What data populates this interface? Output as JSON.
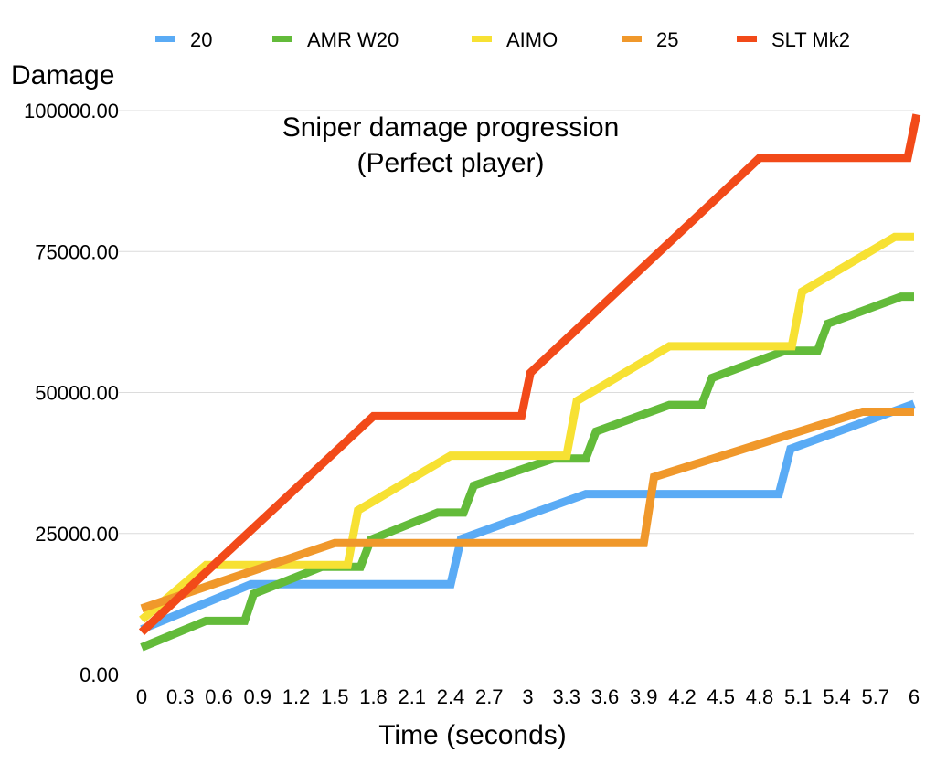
{
  "chart_data": {
    "type": "line",
    "title": "Sniper damage progression",
    "subtitle": "(Perfect player)",
    "xlabel": "Time (seconds)",
    "ylabel": "Damage",
    "x_tick_labels": [
      "0",
      "0.3",
      "0.6",
      "0.9",
      "1.2",
      "1.5",
      "1.8",
      "2.1",
      "2.4",
      "2.7",
      "3",
      "3.3",
      "3.6",
      "3.9",
      "4.2",
      "4.5",
      "4.8",
      "5.1",
      "5.4",
      "5.7",
      "6"
    ],
    "y_tick_labels": [
      "0.00",
      "25000.00",
      "50000.00",
      "75000.00",
      "100000.00"
    ],
    "xlim": [
      0,
      6
    ],
    "ylim": [
      0,
      100000
    ],
    "grid": true,
    "legend_position": "top",
    "series": [
      {
        "name": "20",
        "color": "#5aabf5",
        "points": [
          [
            0,
            8000
          ],
          [
            0.85,
            16000
          ],
          [
            2.4,
            16000
          ],
          [
            2.48,
            24000
          ],
          [
            3.45,
            32000
          ],
          [
            4.95,
            32000
          ],
          [
            5.04,
            40000
          ],
          [
            6,
            48000
          ]
        ]
      },
      {
        "name": "AMR W20",
        "color": "#63bb3a",
        "points": [
          [
            0,
            4800
          ],
          [
            0.5,
            9500
          ],
          [
            0.8,
            9500
          ],
          [
            0.87,
            14300
          ],
          [
            1.4,
            19100
          ],
          [
            1.7,
            19100
          ],
          [
            1.78,
            23900
          ],
          [
            2.3,
            28700
          ],
          [
            2.5,
            28700
          ],
          [
            2.58,
            33500
          ],
          [
            3.2,
            38300
          ],
          [
            3.45,
            38300
          ],
          [
            3.53,
            43100
          ],
          [
            4.1,
            47800
          ],
          [
            4.35,
            47800
          ],
          [
            4.43,
            52600
          ],
          [
            5.0,
            57400
          ],
          [
            5.25,
            57400
          ],
          [
            5.33,
            62200
          ],
          [
            5.9,
            67000
          ],
          [
            6,
            67000
          ]
        ]
      },
      {
        "name": "AIMO",
        "color": "#f7e133",
        "points": [
          [
            0,
            9700
          ],
          [
            0.5,
            19400
          ],
          [
            1.6,
            19400
          ],
          [
            1.68,
            29100
          ],
          [
            2.4,
            38800
          ],
          [
            3.3,
            38800
          ],
          [
            3.38,
            48500
          ],
          [
            4.1,
            58200
          ],
          [
            5.05,
            58200
          ],
          [
            5.13,
            67900
          ],
          [
            5.85,
            77600
          ],
          [
            6,
            77600
          ]
        ]
      },
      {
        "name": "25",
        "color": "#f0982b",
        "points": [
          [
            0,
            11700
          ],
          [
            1.5,
            23300
          ],
          [
            3.9,
            23300
          ],
          [
            3.98,
            35000
          ],
          [
            5.6,
            46600
          ],
          [
            6,
            46600
          ]
        ]
      },
      {
        "name": "SLT Mk2",
        "color": "#f24a19",
        "points": [
          [
            0,
            7500
          ],
          [
            1.8,
            45800
          ],
          [
            2.95,
            45800
          ],
          [
            3.02,
            53500
          ],
          [
            4.8,
            91600
          ],
          [
            5.95,
            91600
          ],
          [
            6.02,
            99300
          ]
        ]
      }
    ]
  }
}
